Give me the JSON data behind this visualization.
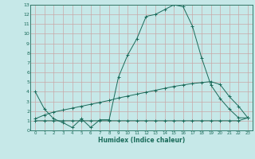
{
  "x": [
    0,
    1,
    2,
    3,
    4,
    5,
    6,
    7,
    8,
    9,
    10,
    11,
    12,
    13,
    14,
    15,
    16,
    17,
    18,
    19,
    20,
    21,
    22,
    23
  ],
  "line1": [
    4.0,
    2.2,
    1.2,
    0.8,
    0.3,
    1.2,
    0.3,
    1.1,
    1.1,
    5.5,
    7.8,
    9.5,
    11.8,
    12.0,
    12.5,
    13.0,
    12.8,
    10.8,
    7.5,
    4.7,
    3.3,
    2.2,
    1.3,
    1.3
  ],
  "line2": [
    1.2,
    1.6,
    1.9,
    2.1,
    2.3,
    2.5,
    2.7,
    2.9,
    3.1,
    3.35,
    3.55,
    3.75,
    3.95,
    4.15,
    4.35,
    4.55,
    4.7,
    4.85,
    4.95,
    5.05,
    4.75,
    3.5,
    2.5,
    1.3
  ],
  "line3": [
    1.0,
    1.0,
    1.0,
    1.0,
    1.0,
    1.0,
    1.0,
    1.0,
    1.0,
    1.0,
    1.0,
    1.0,
    1.0,
    1.0,
    1.0,
    1.0,
    1.0,
    1.0,
    1.0,
    1.0,
    1.0,
    1.0,
    1.0,
    1.3
  ],
  "line_color": "#1a6b5a",
  "bg_color": "#c6e8e8",
  "grid_color": "#c8a8a8",
  "xlabel": "Humidex (Indice chaleur)",
  "ylim": [
    0,
    13
  ],
  "xlim": [
    -0.5,
    23.5
  ],
  "yticks": [
    0,
    1,
    2,
    3,
    4,
    5,
    6,
    7,
    8,
    9,
    10,
    11,
    12,
    13
  ],
  "xticks": [
    0,
    1,
    2,
    3,
    4,
    5,
    6,
    7,
    8,
    9,
    10,
    11,
    12,
    13,
    14,
    15,
    16,
    17,
    18,
    19,
    20,
    21,
    22,
    23
  ],
  "marker": "+"
}
